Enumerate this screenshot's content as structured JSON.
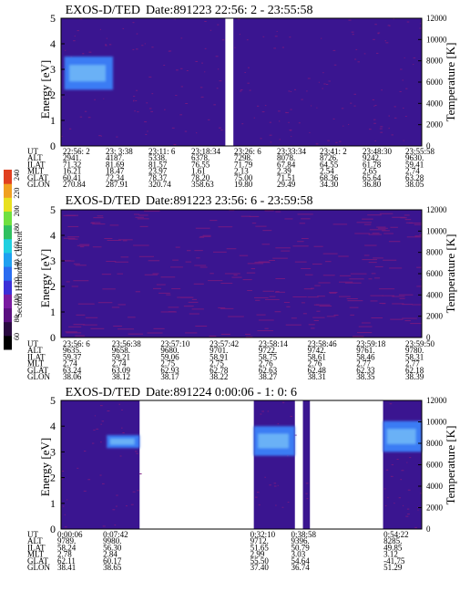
{
  "colors": {
    "background": "#3a1590",
    "speckle": "#7a1a80",
    "blob_core": "#3a7cf4",
    "blob_light": "#7ec8f8",
    "gap": "#ffffff"
  },
  "colorbar": {
    "label": "Second Harmonic Current",
    "ticks": [
      "60",
      "80",
      "100",
      "120",
      "140",
      "160",
      "180",
      "200",
      "220",
      "240"
    ],
    "colors": [
      "#000000",
      "#2a0a40",
      "#5a0f80",
      "#7a1aa0",
      "#3b2fd8",
      "#2a6cf0",
      "#1fa0f0",
      "#20d0e0",
      "#30c060",
      "#70e040",
      "#e8e020",
      "#f0a020",
      "#e04020"
    ]
  },
  "panels": [
    {
      "title": "EXOS-D/TED",
      "date": "Date:891223  22:56: 2 - 23:55:58",
      "ylabel": "Energy [eV]",
      "ylabel_right": "Temperature [K]",
      "y_ticks": [
        "0",
        "1",
        "2",
        "3",
        "4",
        "5"
      ],
      "y_right_ticks": [
        "0",
        "2000",
        "4000",
        "6000",
        "8000",
        "10000",
        "12000"
      ],
      "row_labels": [
        "UT",
        "ALT",
        "ILAT",
        "MLT",
        "GLAT",
        "GLON"
      ],
      "columns": [
        [
          "22:56: 2",
          "2941.",
          "71.32",
          "16.21",
          "60.41",
          "270.84"
        ],
        [
          "23: 3:38",
          "4187.",
          "81.69",
          "18.47",
          "72.34",
          "287.91"
        ],
        [
          "23:11: 6",
          "5338.",
          "81.57",
          "23.97",
          "78.37",
          "320.74"
        ],
        [
          "23:18:34",
          "6378.",
          "76.55",
          "1.61",
          "78.20",
          "358.63"
        ],
        [
          "23:26: 6",
          "7298.",
          "71.79",
          "2.13",
          "75.00",
          "19.80"
        ],
        [
          "23:33:34",
          "8078.",
          "67.84",
          "2.39",
          "71.51",
          "29.49"
        ],
        [
          "23:41: 2",
          "8726.",
          "64.55",
          "2.54",
          "68.36",
          "34.30"
        ],
        [
          "23:48:30",
          "9242.",
          "61.78",
          "2.65",
          "65.64",
          "36.80"
        ],
        [
          "23:55:58",
          "9630.",
          "59.41",
          "2.74",
          "63.28",
          "38.05"
        ]
      ],
      "gaps": [
        [
          "23:23:20",
          "23:24:40"
        ]
      ],
      "blobs": [
        {
          "x_start": "22:56:35",
          "x_end": "23:04:40",
          "e_low": 2.2,
          "e_high": 3.5
        }
      ]
    },
    {
      "title": "EXOS-D/TED",
      "date": "Date:891223  23:56: 6 - 23:59:58",
      "ylabel": "Energy [eV]",
      "ylabel_right": "Temperature [K]",
      "y_ticks": [
        "0",
        "1",
        "2",
        "3",
        "4",
        "5"
      ],
      "y_right_ticks": [
        "0",
        "2000",
        "4000",
        "6000",
        "8000",
        "10000",
        "12000"
      ],
      "row_labels": [
        "UT",
        "ALT",
        "ILAT",
        "MLT",
        "GLAT",
        "GLON"
      ],
      "columns": [
        [
          "23:56: 6",
          "9635.",
          "59.37",
          "2.74",
          "63.24",
          "38.06"
        ],
        [
          "23:56:38",
          "9658.",
          "59.21",
          "2.74",
          "63.09",
          "38.12"
        ],
        [
          "23:57:10",
          "9680.",
          "59.06",
          "2.75",
          "62.93",
          "38.17"
        ],
        [
          "23:57:42",
          "9701.",
          "58.91",
          "2.75",
          "62.78",
          "38.22"
        ],
        [
          "23:58:14",
          "9722.",
          "58.75",
          "2.76",
          "62.63",
          "38.27"
        ],
        [
          "23:58:46",
          "9742.",
          "58.61",
          "2.76",
          "62.48",
          "38.31"
        ],
        [
          "23:59:18",
          "9761.",
          "58.46",
          "2.77",
          "62.33",
          "38.35"
        ],
        [
          "23:59:50",
          "9780.",
          "58.31",
          "2.77",
          "62.18",
          "38.39"
        ]
      ],
      "gaps": [],
      "blobs": []
    },
    {
      "title": "EXOS-D/TED",
      "date": "Date:891224  0:00:06 - 1: 0: 6",
      "ylabel": "Energy [eV]",
      "ylabel_right": "Temperature [K]",
      "y_ticks": [
        "0",
        "1",
        "2",
        "3",
        "4",
        "5"
      ],
      "y_right_ticks": [
        "0",
        "2000",
        "4000",
        "6000",
        "8000",
        "10000",
        "12000"
      ],
      "row_labels": [
        "UT",
        "ALT",
        "ILAT",
        "MLT",
        "GLAT",
        "GLON"
      ],
      "columns": [
        {
          "x": "0:00:06",
          "v": [
            "0:00:06",
            "9789.",
            "58.24",
            "2.78",
            "62.11",
            "38.41"
          ]
        },
        {
          "x": "0:07:42",
          "v": [
            "0:07:42",
            "9980.",
            "56.30",
            "2.84",
            "60.17",
            "38.65"
          ]
        },
        {
          "x": "0:32:10",
          "v": [
            "0:32:10",
            "9712.",
            "51.65",
            "2.99",
            "55.50",
            "37.40"
          ]
        },
        {
          "x": "0:38:58",
          "v": [
            "0:38:58",
            "9396.",
            "50.79",
            "3.03",
            "54.64",
            "36.74"
          ]
        },
        {
          "x": "0:54:22",
          "v": [
            "0:54:22",
            "8285.",
            "49.85",
            "3.12",
            "-41.75",
            "51.29"
          ]
        }
      ],
      "gaps": [
        [
          "0:13:10",
          "0:32:10"
        ],
        [
          "0:39:00",
          "0:40:20"
        ],
        [
          "0:41:30",
          "0:53:40"
        ]
      ],
      "blobs": [
        {
          "x_start": "0:07:42",
          "x_end": "0:13:10",
          "e_low": 3.15,
          "e_high": 3.65
        },
        {
          "x_start": "0:32:10",
          "x_end": "0:39:00",
          "e_low": 2.85,
          "e_high": 4.0
        },
        {
          "x_start": "0:53:40",
          "x_end": "1:00:06",
          "e_low": 3.0,
          "e_high": 4.2
        }
      ]
    }
  ],
  "chart_data": [
    {
      "type": "heatmap",
      "title": "EXOS-D/TED  Date:891223  22:56: 2 - 23:55:58",
      "xlabel": "UT",
      "ylabel": "Energy [eV]",
      "ylabel_right": "Temperature [K]",
      "x_range": [
        "22:56:02",
        "23:55:58"
      ],
      "ylim": [
        0,
        5
      ],
      "y2lim": [
        0,
        12000
      ],
      "colorbar_label": "Second Harmonic Current",
      "colorbar_range": [
        40,
        240
      ]
    },
    {
      "type": "heatmap",
      "title": "EXOS-D/TED  Date:891223  23:56: 6 - 23:59:58",
      "xlabel": "UT",
      "ylabel": "Energy [eV]",
      "ylabel_right": "Temperature [K]",
      "x_range": [
        "23:56:06",
        "23:59:58"
      ],
      "ylim": [
        0,
        5
      ],
      "y2lim": [
        0,
        12000
      ]
    },
    {
      "type": "heatmap",
      "title": "EXOS-D/TED  Date:891224  0:00:06 - 1: 0: 6",
      "xlabel": "UT",
      "ylabel": "Energy [eV]",
      "ylabel_right": "Temperature [K]",
      "x_range": [
        "0:00:06",
        "1:00:06"
      ],
      "ylim": [
        0,
        5
      ],
      "y2lim": [
        0,
        12000
      ]
    }
  ]
}
